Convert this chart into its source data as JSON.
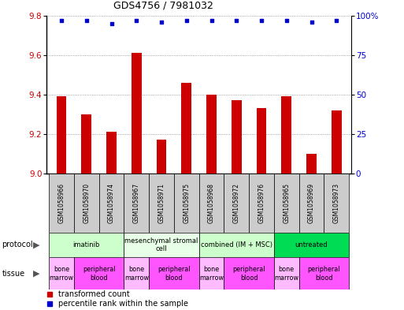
{
  "title": "GDS4756 / 7981032",
  "samples": [
    "GSM1058966",
    "GSM1058970",
    "GSM1058974",
    "GSM1058967",
    "GSM1058971",
    "GSM1058975",
    "GSM1058968",
    "GSM1058972",
    "GSM1058976",
    "GSM1058965",
    "GSM1058969",
    "GSM1058973"
  ],
  "bar_values": [
    9.39,
    9.3,
    9.21,
    9.61,
    9.17,
    9.46,
    9.4,
    9.37,
    9.33,
    9.39,
    9.1,
    9.32
  ],
  "dot_values": [
    97,
    97,
    95,
    97,
    96,
    97,
    97,
    97,
    97,
    97,
    96,
    97
  ],
  "bar_color": "#cc0000",
  "dot_color": "#0000cc",
  "ylim_left": [
    9.0,
    9.8
  ],
  "ylim_right": [
    0,
    100
  ],
  "yticks_left": [
    9.0,
    9.2,
    9.4,
    9.6,
    9.8
  ],
  "yticks_right": [
    0,
    25,
    50,
    75,
    100
  ],
  "ytick_labels_right": [
    "0",
    "25",
    "50",
    "75",
    "100%"
  ],
  "protocol_groups": [
    {
      "label": "imatinib",
      "start": 0,
      "end": 3,
      "color": "#ccffcc"
    },
    {
      "label": "mesenchymal stromal\ncell",
      "start": 3,
      "end": 6,
      "color": "#e8ffe8"
    },
    {
      "label": "combined (IM + MSC)",
      "start": 6,
      "end": 9,
      "color": "#ccffcc"
    },
    {
      "label": "untreated",
      "start": 9,
      "end": 12,
      "color": "#00dd55"
    }
  ],
  "tissue_groups": [
    {
      "label": "bone\nmarrow",
      "start": 0,
      "end": 1,
      "color": "#ffbbff"
    },
    {
      "label": "peripheral\nblood",
      "start": 1,
      "end": 3,
      "color": "#ff55ff"
    },
    {
      "label": "bone\nmarrow",
      "start": 3,
      "end": 4,
      "color": "#ffbbff"
    },
    {
      "label": "peripheral\nblood",
      "start": 4,
      "end": 6,
      "color": "#ff55ff"
    },
    {
      "label": "bone\nmarrow",
      "start": 6,
      "end": 7,
      "color": "#ffbbff"
    },
    {
      "label": "peripheral\nblood",
      "start": 7,
      "end": 9,
      "color": "#ff55ff"
    },
    {
      "label": "bone\nmarrow",
      "start": 9,
      "end": 10,
      "color": "#ffbbff"
    },
    {
      "label": "peripheral\nblood",
      "start": 10,
      "end": 12,
      "color": "#ff55ff"
    }
  ],
  "sample_box_color": "#cccccc",
  "bg_color": "#ffffff",
  "grid_color": "#888888"
}
